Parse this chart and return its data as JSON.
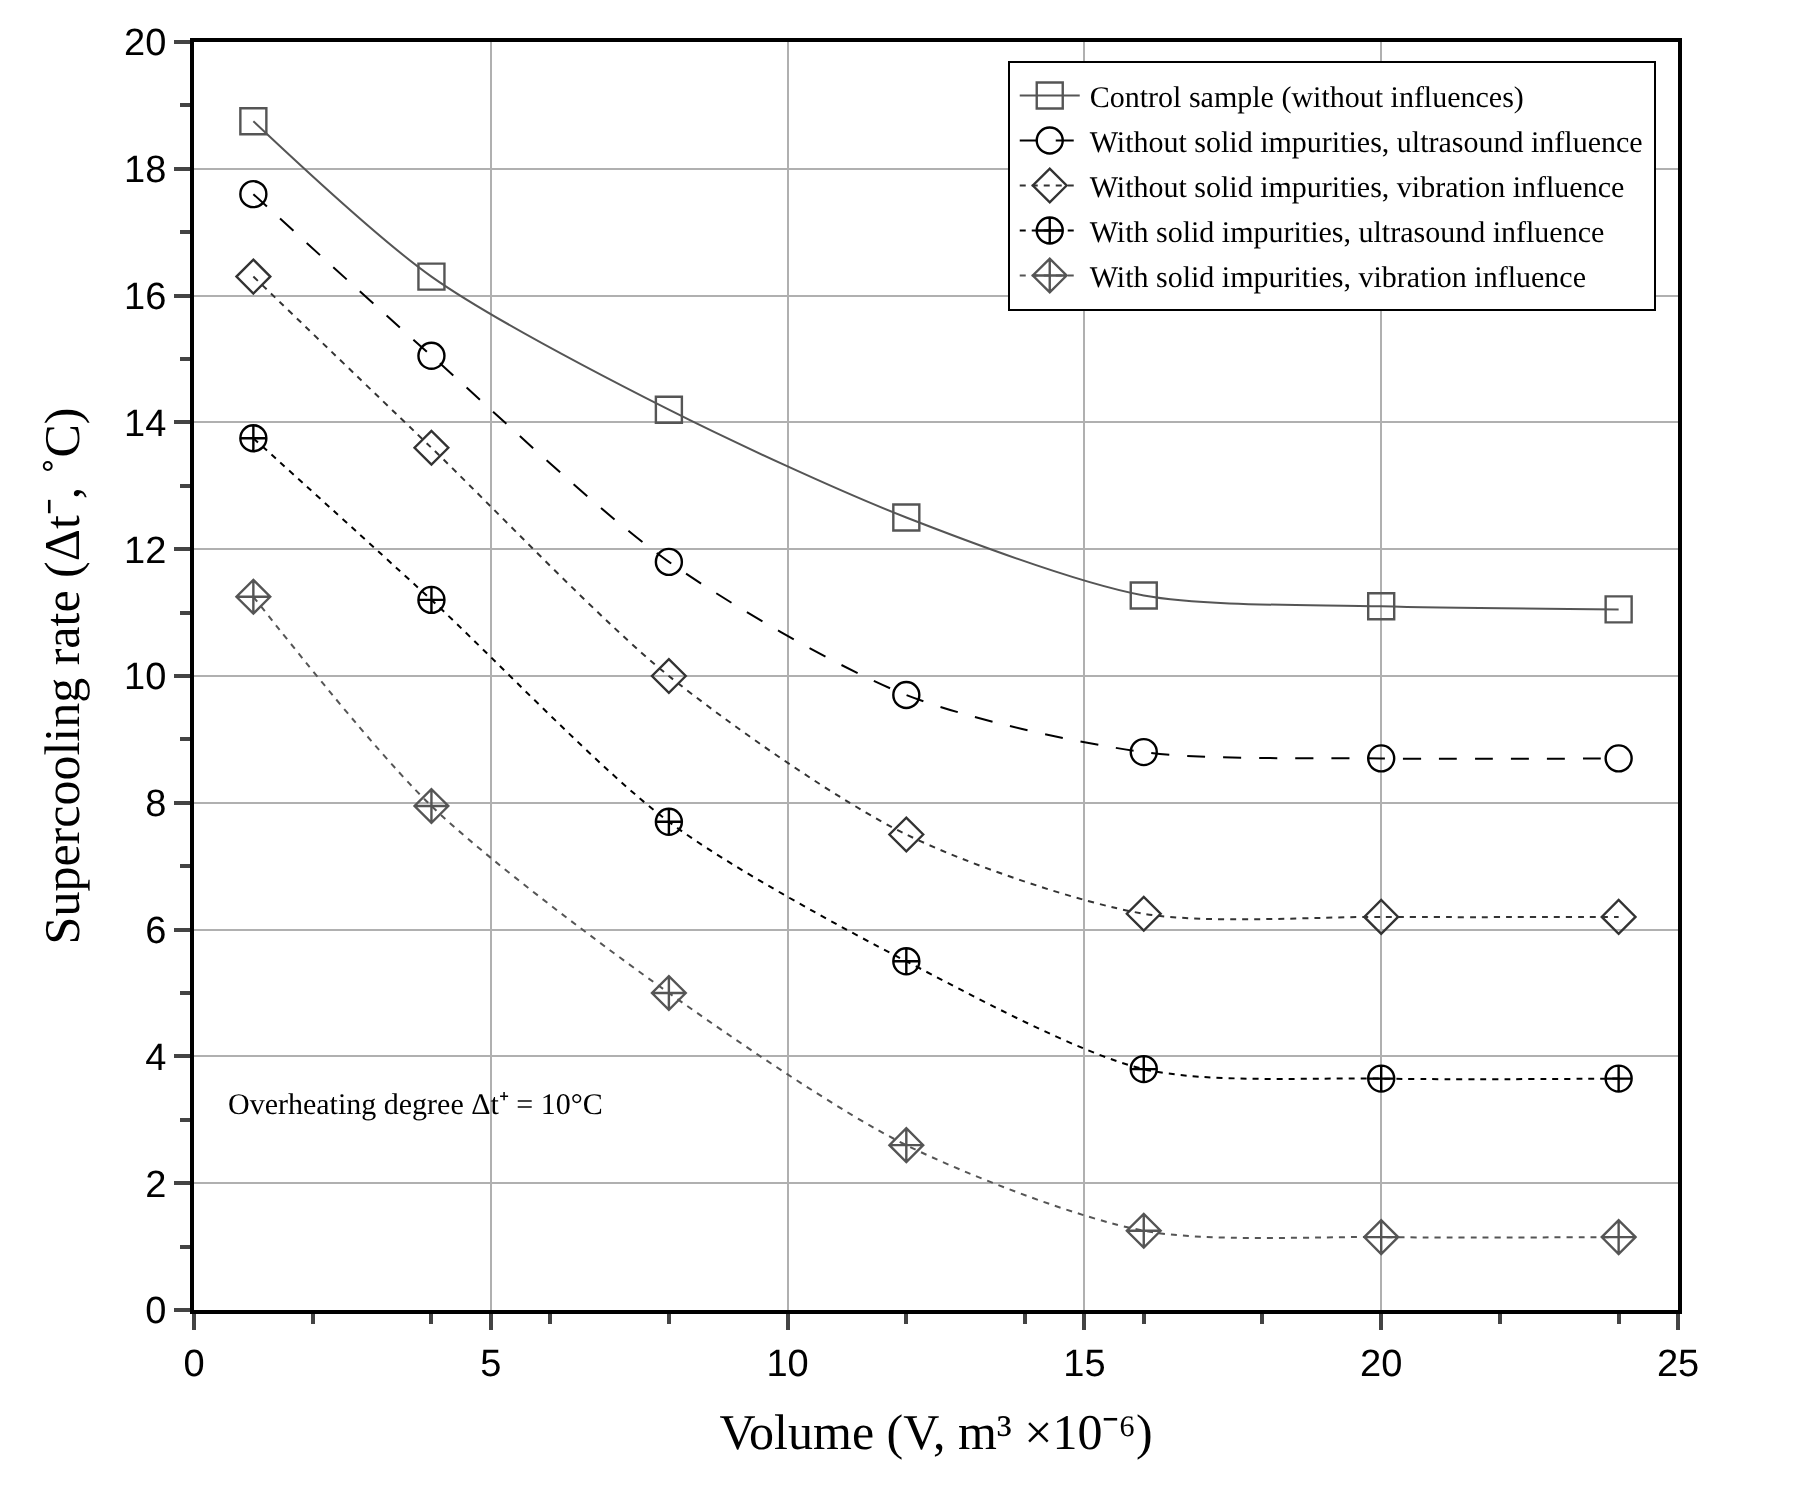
{
  "chart_data": {
    "type": "line",
    "xlabel": "Volume (V, m³ ×10⁻⁶)",
    "ylabel": "Supercooling rate (Δt⁻, ˚C)",
    "x": [
      1,
      4,
      8,
      12,
      16,
      20,
      24
    ],
    "series": [
      {
        "name": "Control sample (without influences)",
        "color": "#555555",
        "marker": "square",
        "line_style": "solid",
        "values": [
          18.75,
          16.3,
          14.2,
          12.5,
          11.27,
          11.1,
          11.05
        ]
      },
      {
        "name": "Without solid impurities, ultrasound influence",
        "color": "#000000",
        "marker": "circle",
        "line_style": "dashed",
        "values": [
          17.6,
          15.05,
          11.8,
          9.7,
          8.8,
          8.7,
          8.7
        ]
      },
      {
        "name": "Without solid impurities, vibration influence",
        "color": "#333333",
        "marker": "diamond",
        "line_style": "dotted",
        "values": [
          16.3,
          13.6,
          10.0,
          7.5,
          6.25,
          6.2,
          6.2
        ]
      },
      {
        "name": "With solid impurities, ultrasound influence",
        "color": "#000000",
        "marker": "cross",
        "line_style": "dotted",
        "values": [
          13.75,
          11.2,
          7.7,
          5.5,
          3.8,
          3.65,
          3.65
        ]
      },
      {
        "name": "With solid impurities, vibration influence",
        "color": "#555555",
        "marker": "diamond-cross",
        "line_style": "dotted",
        "values": [
          11.25,
          7.95,
          5.0,
          2.6,
          1.25,
          1.15,
          1.15
        ]
      }
    ],
    "xlim": [
      0,
      25
    ],
    "xticks": [
      0,
      5,
      10,
      15,
      20,
      25
    ],
    "ylim": [
      0,
      20
    ],
    "yticks": [
      0,
      2,
      4,
      6,
      8,
      10,
      12,
      14,
      16,
      18,
      20
    ],
    "grid": true,
    "legend": "top right",
    "annotations": [
      "Overheating degree Δt⁺ = 10°C"
    ]
  }
}
